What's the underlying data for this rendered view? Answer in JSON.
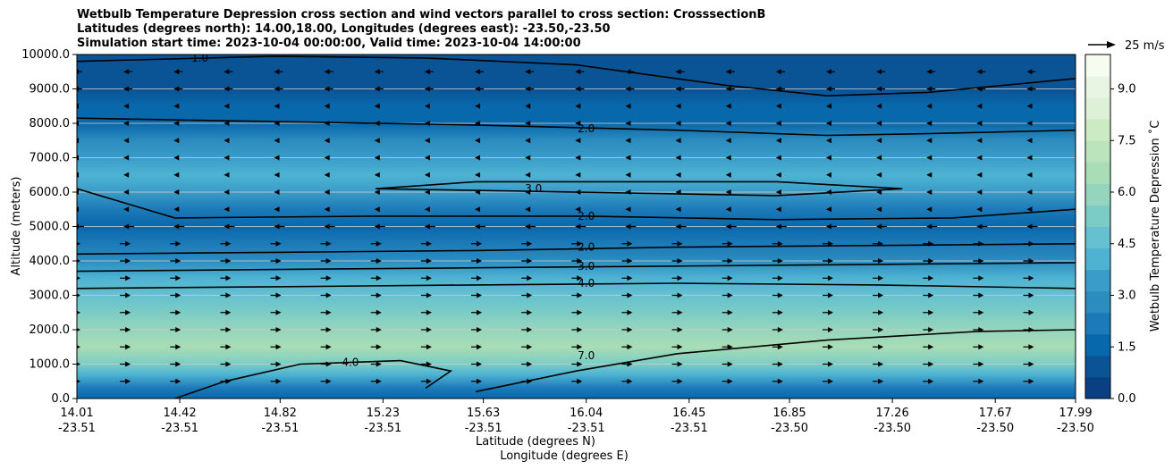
{
  "chart_data": {
    "type": "heatmap",
    "title": "Wetbulb Temperature Depression cross section and wind vectors parallel to cross section: CrosssectionB",
    "subtitle_lines": [
      "Latitudes (degrees north): 14.00,18.00, Longitudes (degrees east): -23.50,-23.50",
      "Simulation start time: 2023-10-04 00:00:00, Valid time: 2023-10-04 14:00:00"
    ],
    "ylabel": "Altitude (meters)",
    "xlabel": "Latitude (degrees N)",
    "xlabel2": "Longitude (degrees E)",
    "ylim": [
      0,
      10000
    ],
    "yticks": [
      "0.0",
      "1000.0",
      "2000.0",
      "3000.0",
      "4000.0",
      "5000.0",
      "6000.0",
      "7000.0",
      "8000.0",
      "9000.0",
      "10000.0"
    ],
    "x_ticks": [
      {
        "lat": "14.01",
        "lon": "-23.51"
      },
      {
        "lat": "14.42",
        "lon": "-23.51"
      },
      {
        "lat": "14.82",
        "lon": "-23.51"
      },
      {
        "lat": "15.23",
        "lon": "-23.51"
      },
      {
        "lat": "15.63",
        "lon": "-23.51"
      },
      {
        "lat": "16.04",
        "lon": "-23.51"
      },
      {
        "lat": "16.45",
        "lon": "-23.51"
      },
      {
        "lat": "16.85",
        "lon": "-23.50"
      },
      {
        "lat": "17.26",
        "lon": "-23.50"
      },
      {
        "lat": "17.67",
        "lon": "-23.50"
      },
      {
        "lat": "17.99",
        "lon": "-23.50"
      }
    ],
    "xlim": [
      14.01,
      17.99
    ],
    "grid": "horizontal",
    "colorbar": {
      "label": "Wetbulb Temperature Depression ˚C",
      "min": 0.0,
      "max": 10.0,
      "ticks": [
        "0.0",
        "1.5",
        "3.0",
        "4.5",
        "6.0",
        "7.5",
        "9.0"
      ],
      "tick_values": [
        0,
        1.5,
        3,
        4.5,
        6,
        7.5,
        9
      ],
      "colors": [
        "#084081",
        "#0a5394",
        "#0868ac",
        "#1d7ab8",
        "#2b8cbe",
        "#3a9cc8",
        "#4eb3d3",
        "#66c0cf",
        "#7bccc4",
        "#95d5bd",
        "#a8ddb5",
        "#bbe4bc",
        "#ccebc5",
        "#dcf1d6",
        "#e8f5e2",
        "#f7fcf0"
      ]
    },
    "quiver_key": {
      "label": "25 m/s",
      "value": 25
    },
    "levels": [
      {
        "y": 0,
        "value": 1.8
      },
      {
        "y": 300,
        "value": 2.0
      },
      {
        "y": 700,
        "value": 4.0
      },
      {
        "y": 1000,
        "value": 5.6
      },
      {
        "y": 1500,
        "value": 6.4
      },
      {
        "y": 2000,
        "value": 6.0
      },
      {
        "y": 2500,
        "value": 5.2
      },
      {
        "y": 3000,
        "value": 4.4
      },
      {
        "y": 3500,
        "value": 3.8
      },
      {
        "y": 4000,
        "value": 2.8
      },
      {
        "y": 4500,
        "value": 2.2
      },
      {
        "y": 5000,
        "value": 1.8
      },
      {
        "y": 5500,
        "value": 2.3
      },
      {
        "y": 6000,
        "value": 3.2
      },
      {
        "y": 6500,
        "value": 3.8
      },
      {
        "y": 7000,
        "value": 3.6
      },
      {
        "y": 7500,
        "value": 2.6
      },
      {
        "y": 8000,
        "value": 1.8
      },
      {
        "y": 8500,
        "value": 1.4
      },
      {
        "y": 9000,
        "value": 1.2
      },
      {
        "y": 9500,
        "value": 1.0
      },
      {
        "y": 10000,
        "value": 0.8
      }
    ],
    "contours": [
      {
        "label": "2.0",
        "lat": 16.04,
        "y": 4400,
        "points": [
          [
            14.01,
            4200
          ],
          [
            14.8,
            4250
          ],
          [
            15.6,
            4300
          ],
          [
            16.4,
            4400
          ],
          [
            17.2,
            4450
          ],
          [
            17.99,
            4500
          ]
        ]
      },
      {
        "label": "3.0",
        "lat": 16.04,
        "y": 3850,
        "points": [
          [
            14.01,
            3700
          ],
          [
            14.8,
            3750
          ],
          [
            15.6,
            3800
          ],
          [
            16.4,
            3850
          ],
          [
            17.2,
            3900
          ],
          [
            17.99,
            3950
          ]
        ]
      },
      {
        "label": "4.0",
        "lat": 16.04,
        "y": 3350,
        "points": [
          [
            14.01,
            3200
          ],
          [
            14.8,
            3250
          ],
          [
            15.6,
            3300
          ],
          [
            16.4,
            3350
          ],
          [
            17.2,
            3300
          ],
          [
            17.99,
            3200
          ]
        ]
      },
      {
        "label": "2.0",
        "lat": 16.04,
        "y": 5300,
        "points": [
          [
            14.01,
            6100
          ],
          [
            14.4,
            5250
          ],
          [
            15.2,
            5300
          ],
          [
            16.04,
            5300
          ],
          [
            16.8,
            5200
          ],
          [
            17.5,
            5250
          ],
          [
            17.99,
            5500
          ]
        ]
      },
      {
        "label": "3.0",
        "lat": 15.83,
        "y": 6100,
        "points": [
          [
            15.2,
            6100
          ],
          [
            16.0,
            6000
          ],
          [
            16.8,
            5900
          ],
          [
            17.3,
            6100
          ],
          [
            16.8,
            6300
          ],
          [
            15.6,
            6300
          ],
          [
            15.2,
            6100
          ]
        ]
      },
      {
        "label": "2.0",
        "lat": 16.04,
        "y": 7850,
        "points": [
          [
            14.01,
            8150
          ],
          [
            14.8,
            8050
          ],
          [
            15.6,
            7950
          ],
          [
            16.4,
            7800
          ],
          [
            17.0,
            7650
          ],
          [
            17.4,
            7700
          ],
          [
            17.99,
            7800
          ]
        ]
      },
      {
        "label": "7.0",
        "lat": 16.04,
        "y": 1250,
        "points": [
          [
            15.6,
            200
          ],
          [
            16.0,
            800
          ],
          [
            16.4,
            1300
          ],
          [
            17.0,
            1700
          ],
          [
            17.6,
            1950
          ],
          [
            17.99,
            2000
          ]
        ]
      },
      {
        "label": "4.0",
        "lat": 15.1,
        "y": 1050,
        "points": [
          [
            14.4,
            0
          ],
          [
            14.6,
            500
          ],
          [
            14.9,
            1000
          ],
          [
            15.3,
            1100
          ],
          [
            15.5,
            800
          ],
          [
            15.4,
            300
          ]
        ]
      },
      {
        "label": "1.0",
        "lat": 14.5,
        "y": 9900,
        "points": [
          [
            14.01,
            9800
          ],
          [
            14.8,
            9950
          ],
          [
            15.4,
            9900
          ],
          [
            16.0,
            9700
          ],
          [
            16.6,
            9100
          ],
          [
            17.0,
            8800
          ],
          [
            17.4,
            8900
          ],
          [
            17.99,
            9300
          ]
        ]
      }
    ]
  }
}
